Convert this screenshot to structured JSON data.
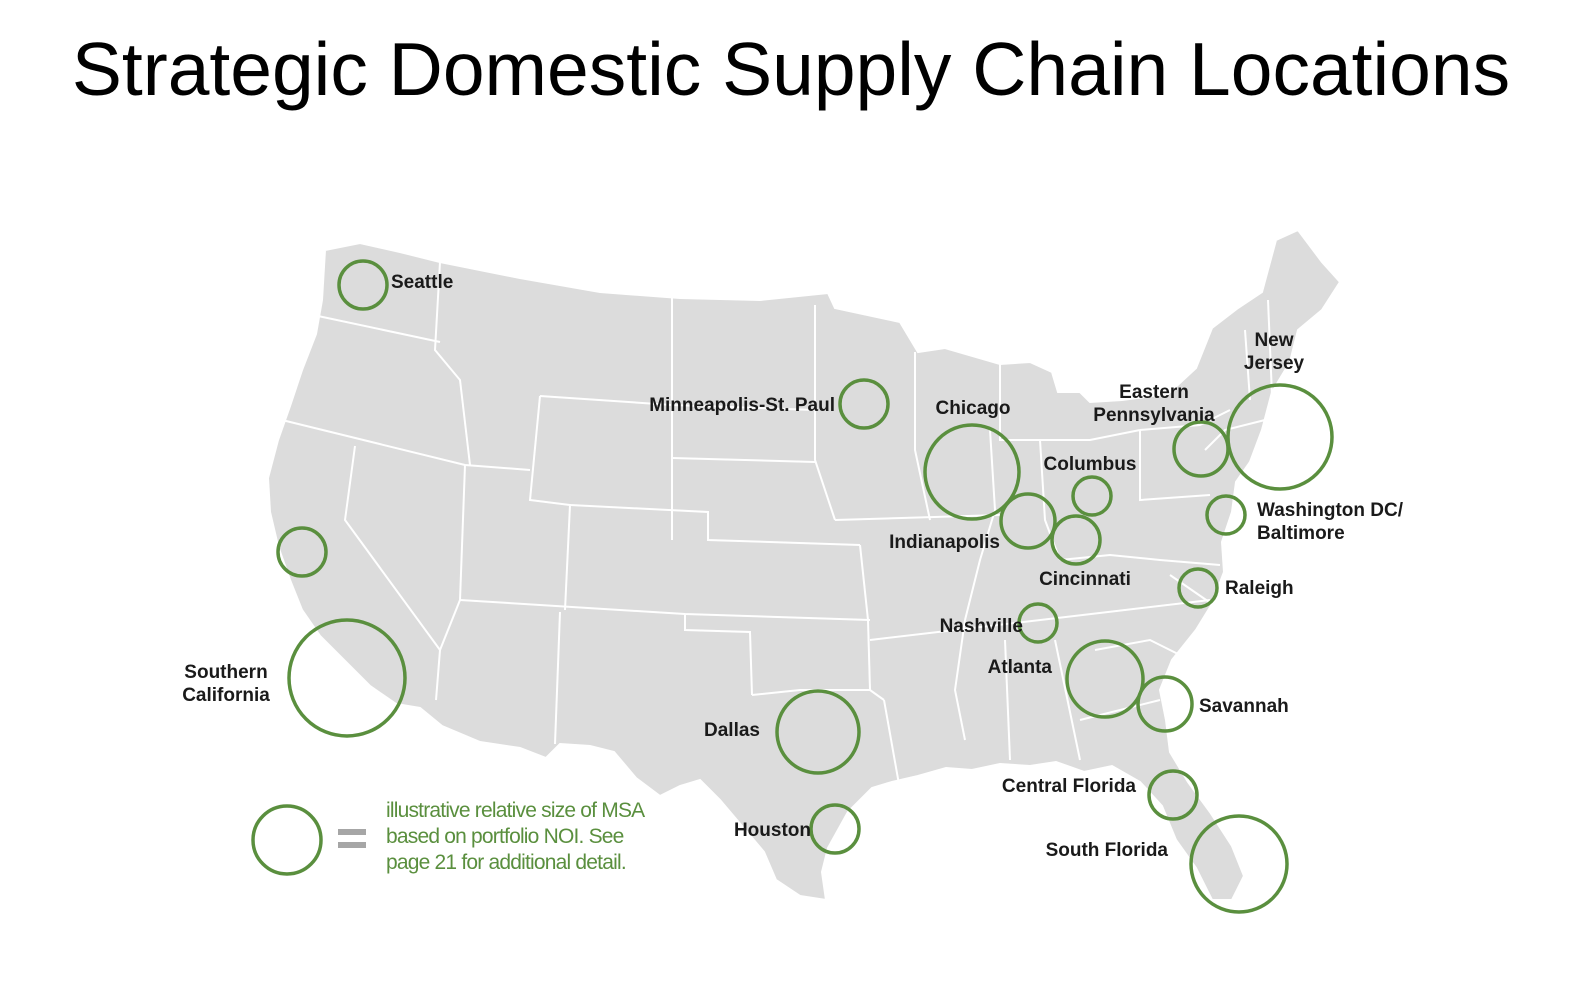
{
  "title": "Strategic Domestic Supply Chain Locations",
  "colors": {
    "bubble": "#5a8f3e",
    "land": "#dcdcdc",
    "text": "#1a1a1a"
  },
  "markets": [
    {
      "id": "seattle",
      "label_lines": [
        "Seattle"
      ]
    },
    {
      "id": "northern-california",
      "label_lines": []
    },
    {
      "id": "southern-california",
      "label_lines": [
        "Southern",
        "California"
      ]
    },
    {
      "id": "minneapolis",
      "label_lines": [
        "Minneapolis-St. Paul"
      ]
    },
    {
      "id": "chicago",
      "label_lines": [
        "Chicago"
      ]
    },
    {
      "id": "indianapolis",
      "label_lines": [
        "Indianapolis"
      ]
    },
    {
      "id": "columbus",
      "label_lines": [
        "Columbus"
      ]
    },
    {
      "id": "cincinnati",
      "label_lines": [
        "Cincinnati"
      ]
    },
    {
      "id": "eastern-pennsylvania",
      "label_lines": [
        "Eastern",
        "Pennsylvania"
      ]
    },
    {
      "id": "new-jersey",
      "label_lines": [
        "New",
        "Jersey"
      ]
    },
    {
      "id": "washington-baltimore",
      "label_lines": [
        "Washington DC/",
        "Baltimore"
      ]
    },
    {
      "id": "raleigh",
      "label_lines": [
        "Raleigh"
      ]
    },
    {
      "id": "nashville",
      "label_lines": [
        "Nashville"
      ]
    },
    {
      "id": "atlanta",
      "label_lines": [
        "Atlanta"
      ]
    },
    {
      "id": "savannah",
      "label_lines": [
        "Savannah"
      ]
    },
    {
      "id": "dallas",
      "label_lines": [
        "Dallas"
      ]
    },
    {
      "id": "houston",
      "label_lines": [
        "Houston"
      ]
    },
    {
      "id": "central-florida",
      "label_lines": [
        "Central Florida"
      ]
    },
    {
      "id": "south-florida",
      "label_lines": [
        "South Florida"
      ]
    }
  ],
  "legend": {
    "symbol": "=",
    "lines": [
      "illustrative relative size of MSA",
      "based on portfolio NOI. See",
      "page 21 for additional detail."
    ]
  }
}
